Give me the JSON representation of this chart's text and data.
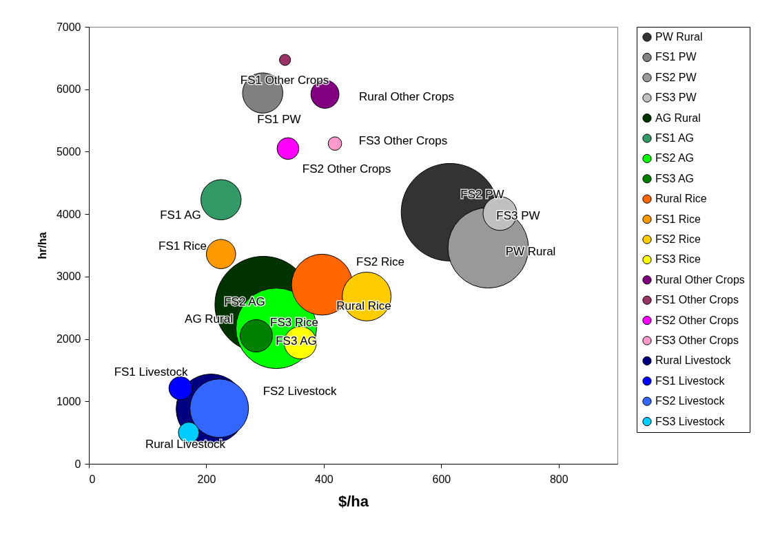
{
  "chart_data": {
    "type": "bubble",
    "xlabel": "$/ha",
    "ylabel": "hr/ha",
    "xlim": [
      0,
      900
    ],
    "xticks": [
      0,
      200,
      400,
      600,
      800
    ],
    "ylim": [
      0,
      7000
    ],
    "yticks": [
      0,
      1000,
      2000,
      3000,
      4000,
      5000,
      6000,
      7000
    ],
    "grid": false,
    "legend": "right",
    "marker": "circle",
    "series": [
      {
        "name": "PW Rural",
        "color": "#333333",
        "x": [
          615
        ],
        "values": [
          4030
        ],
        "sizes": [
          1
        ]
      },
      {
        "name": "FS1 PW",
        "color": "#808080",
        "x": [
          296
        ],
        "values": [
          5940
        ],
        "sizes": [
          0.17
        ]
      },
      {
        "name": "FS2 PW",
        "color": "#999999",
        "x": [
          680
        ],
        "values": [
          3460
        ],
        "sizes": [
          0.68
        ]
      },
      {
        "name": "FS3 PW",
        "color": "#c0c0c0",
        "x": [
          700
        ],
        "values": [
          4010
        ],
        "sizes": [
          0.12
        ]
      },
      {
        "name": "AG Rural",
        "color": "#003300",
        "x": [
          297
        ],
        "values": [
          2550
        ],
        "sizes": [
          0.98
        ]
      },
      {
        "name": "FS1 AG",
        "color": "#339966",
        "x": [
          225
        ],
        "values": [
          4230
        ],
        "sizes": [
          0.17
        ]
      },
      {
        "name": "FS2 AG",
        "color": "#00ff00",
        "x": [
          319
        ],
        "values": [
          2170
        ],
        "sizes": [
          0.68
        ]
      },
      {
        "name": "FS3 AG",
        "color": "#008000",
        "x": [
          285
        ],
        "values": [
          2050
        ],
        "sizes": [
          0.11
        ]
      },
      {
        "name": "Rural Rice",
        "color": "#ff6600",
        "x": [
          397
        ],
        "values": [
          2870
        ],
        "sizes": [
          0.39
        ]
      },
      {
        "name": "FS1 Rice",
        "color": "#ff9900",
        "x": [
          225
        ],
        "values": [
          3360
        ],
        "sizes": [
          0.09
        ]
      },
      {
        "name": "FS2 Rice",
        "color": "#ffcc00",
        "x": [
          473
        ],
        "values": [
          2680
        ],
        "sizes": [
          0.25
        ]
      },
      {
        "name": "FS3 Rice",
        "color": "#ffff00",
        "x": [
          360
        ],
        "values": [
          1940
        ],
        "sizes": [
          0.11
        ]
      },
      {
        "name": "Rural Other Crops",
        "color": "#800080",
        "x": [
          402
        ],
        "values": [
          5920
        ],
        "sizes": [
          0.083
        ]
      },
      {
        "name": "FS1 Other Crops",
        "color": "#993366",
        "x": [
          334
        ],
        "values": [
          6470
        ],
        "sizes": [
          0.013
        ]
      },
      {
        "name": "FS2 Other Crops",
        "color": "#ff00ff",
        "x": [
          339
        ],
        "values": [
          5050
        ],
        "sizes": [
          0.05
        ]
      },
      {
        "name": "FS3 Other Crops",
        "color": "#ff99cc",
        "x": [
          419
        ],
        "values": [
          5130
        ],
        "sizes": [
          0.019
        ]
      },
      {
        "name": "Rural Livestock",
        "color": "#000080",
        "x": [
          208
        ],
        "values": [
          880
        ],
        "sizes": [
          0.51
        ]
      },
      {
        "name": "FS1 Livestock",
        "color": "#0000ff",
        "x": [
          156
        ],
        "values": [
          1210
        ],
        "sizes": [
          0.056
        ]
      },
      {
        "name": "FS2 Livestock",
        "color": "#3366ff",
        "x": [
          222
        ],
        "values": [
          890
        ],
        "sizes": [
          0.36
        ]
      },
      {
        "name": "FS3 Livestock",
        "color": "#00ccff",
        "x": [
          170
        ],
        "values": [
          500
        ],
        "sizes": [
          0.045
        ]
      }
    ],
    "annotations": [
      "FS1 Other Crops",
      "Rural Other Crops",
      "FS1 PW",
      "FS3 Other Crops",
      "FS2 Other Crops",
      "FS2 PW",
      "FS3 PW",
      "FS1 AG",
      "PW Rural",
      "FS1 Rice",
      "FS2 Rice",
      "FS2 AG",
      "Rural Rice",
      "AG Rural",
      "FS3 Rice",
      "FS3 AG",
      "FS1 Livestock",
      "FS2 Livestock",
      "Rural Livestock"
    ]
  }
}
